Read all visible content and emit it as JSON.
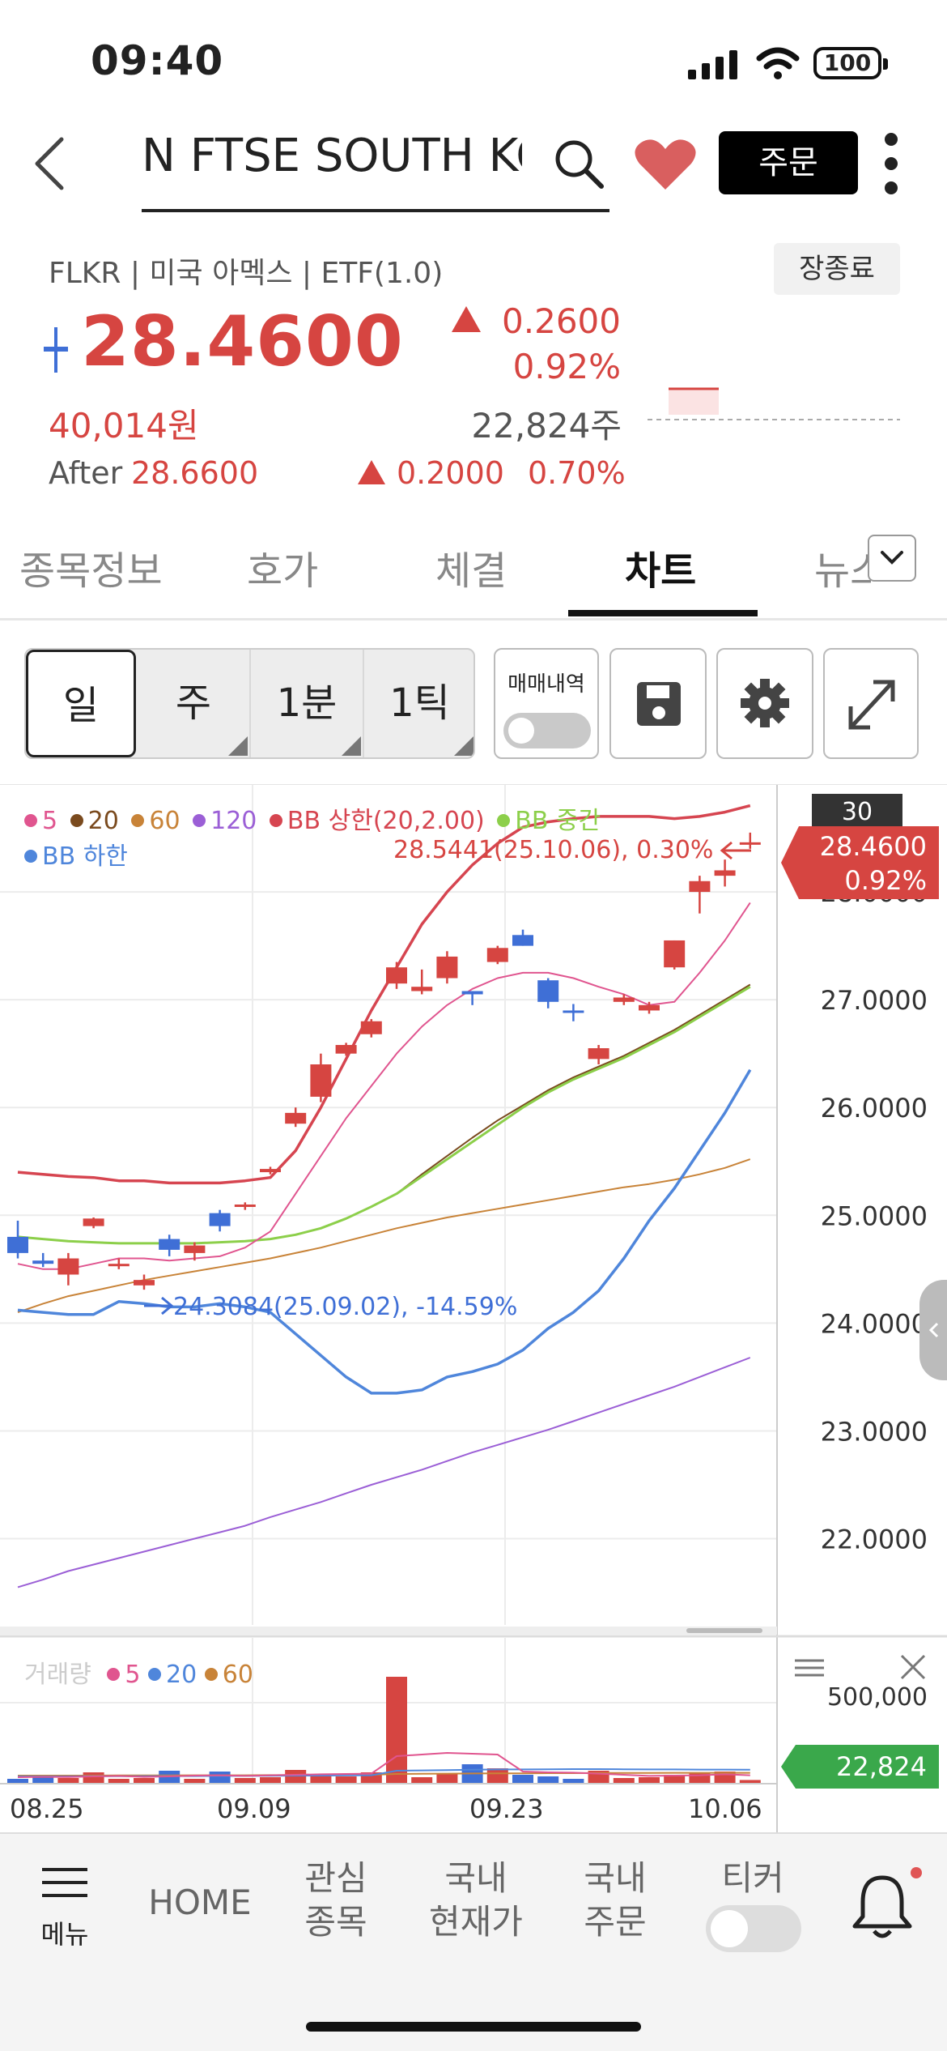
{
  "status_bar": {
    "time": "09:40",
    "battery": "100"
  },
  "header": {
    "title": "N FTSE SOUTH KOREA",
    "order_label": "주문"
  },
  "stock": {
    "sub_info": "FLKR | 미국 아멕스 | ETF(1.0)",
    "close_badge": "장종료",
    "price": "28.4600",
    "change": "0.2600",
    "change_pct": "0.92%",
    "price_krw": "40,014원",
    "volume": "22,824주",
    "after_label": "After",
    "after_price": "28.6600",
    "after_change": "0.2000",
    "after_change_pct": "0.70%"
  },
  "tabs": [
    "종목정보",
    "호가",
    "체결",
    "차트",
    "뉴스"
  ],
  "toolbar": {
    "periods": [
      "일",
      "주",
      "1분",
      "1틱"
    ],
    "trade_history_label": "매매내역"
  },
  "legend": {
    "ma5": "5",
    "ma20": "20",
    "ma60": "60",
    "ma120": "120",
    "bb_upper": "BB 상한(20,2.00)",
    "bb_mid": "BB 중간",
    "bb_lower": "BB 하한"
  },
  "colors": {
    "up": "#d64541",
    "down": "#3f6fd6",
    "ma5": "#e0558f",
    "ma20": "#7a4a1e",
    "ma60": "#c88338",
    "ma120": "#9b5fd6",
    "bb_upper": "#d64550",
    "bb_mid": "#8ccf4a",
    "bb_lower": "#4f86db",
    "volume_tag": "#3aa84b"
  },
  "annotations": {
    "max": "28.5441(25.10.06), 0.30%",
    "min": "24.3084(25.09.02), -14.59%",
    "period_badge": "30"
  },
  "price_tag": {
    "value": "28.4600",
    "pct": "0.92%"
  },
  "chart_data": {
    "type": "candlestick",
    "y_ticks": [
      "28.0000",
      "27.0000",
      "26.0000",
      "25.0000",
      "24.0000",
      "23.0000",
      "22.0000"
    ],
    "ylim": [
      21.2,
      29.0
    ],
    "x_labels": [
      "08.25",
      "09.09",
      "09.23",
      "10.06"
    ],
    "candles": [
      {
        "o": 24.8,
        "h": 24.95,
        "l": 24.6,
        "c": 24.65
      },
      {
        "o": 24.58,
        "h": 24.65,
        "l": 24.52,
        "c": 24.55
      },
      {
        "o": 24.45,
        "h": 24.65,
        "l": 24.35,
        "c": 24.6
      },
      {
        "o": 24.9,
        "h": 24.98,
        "l": 24.88,
        "c": 24.97
      },
      {
        "o": 24.55,
        "h": 24.6,
        "l": 24.5,
        "c": 24.55
      },
      {
        "o": 24.35,
        "h": 24.45,
        "l": 24.31,
        "c": 24.4
      },
      {
        "o": 24.78,
        "h": 24.82,
        "l": 24.62,
        "c": 24.68
      },
      {
        "o": 24.65,
        "h": 24.75,
        "l": 24.58,
        "c": 24.72
      },
      {
        "o": 25.02,
        "h": 25.05,
        "l": 24.85,
        "c": 24.9
      },
      {
        "o": 25.08,
        "h": 25.12,
        "l": 25.05,
        "c": 25.1
      },
      {
        "o": 25.4,
        "h": 25.45,
        "l": 25.38,
        "c": 25.43
      },
      {
        "o": 25.85,
        "h": 26.0,
        "l": 25.82,
        "c": 25.95
      },
      {
        "o": 26.1,
        "h": 26.5,
        "l": 26.05,
        "c": 26.4
      },
      {
        "o": 26.5,
        "h": 26.6,
        "l": 26.48,
        "c": 26.58
      },
      {
        "o": 26.68,
        "h": 26.82,
        "l": 26.65,
        "c": 26.8
      },
      {
        "o": 27.15,
        "h": 27.35,
        "l": 27.1,
        "c": 27.3
      },
      {
        "o": 27.08,
        "h": 27.28,
        "l": 27.05,
        "c": 27.12
      },
      {
        "o": 27.2,
        "h": 27.45,
        "l": 27.15,
        "c": 27.4
      },
      {
        "o": 27.08,
        "h": 27.08,
        "l": 26.95,
        "c": 27.05
      },
      {
        "o": 27.35,
        "h": 27.5,
        "l": 27.33,
        "c": 27.48
      },
      {
        "o": 27.6,
        "h": 27.65,
        "l": 27.5,
        "c": 27.5
      },
      {
        "o": 27.18,
        "h": 27.2,
        "l": 26.92,
        "c": 26.98
      },
      {
        "o": 26.9,
        "h": 26.96,
        "l": 26.8,
        "c": 26.88
      },
      {
        "o": 26.45,
        "h": 26.58,
        "l": 26.4,
        "c": 26.55
      },
      {
        "o": 26.98,
        "h": 27.05,
        "l": 26.95,
        "c": 27.02
      },
      {
        "o": 26.9,
        "h": 26.98,
        "l": 26.87,
        "c": 26.95
      },
      {
        "o": 27.3,
        "h": 27.55,
        "l": 27.28,
        "c": 27.55
      },
      {
        "o": 28.0,
        "h": 28.15,
        "l": 27.8,
        "c": 28.1
      },
      {
        "o": 28.15,
        "h": 28.3,
        "l": 28.05,
        "c": 28.2
      },
      {
        "o": 28.45,
        "h": 28.55,
        "l": 28.4,
        "c": 28.46
      }
    ],
    "bb_upper": [
      25.4,
      25.38,
      25.36,
      25.35,
      25.32,
      25.32,
      25.3,
      25.3,
      25.3,
      25.32,
      25.35,
      25.6,
      26.0,
      26.45,
      26.9,
      27.3,
      27.7,
      28.0,
      28.25,
      28.45,
      28.6,
      28.65,
      28.68,
      28.7,
      28.7,
      28.7,
      28.68,
      28.7,
      28.74,
      28.8
    ],
    "bb_mid": [
      24.8,
      24.78,
      24.76,
      24.75,
      24.74,
      24.74,
      24.74,
      24.74,
      24.75,
      24.76,
      24.78,
      24.82,
      24.88,
      24.97,
      25.08,
      25.2,
      25.36,
      25.52,
      25.68,
      25.84,
      26.0,
      26.14,
      26.26,
      26.36,
      26.46,
      26.58,
      26.7,
      26.84,
      26.98,
      27.12
    ],
    "bb_lower": [
      24.12,
      24.1,
      24.08,
      24.08,
      24.2,
      24.18,
      24.15,
      24.15,
      24.18,
      24.15,
      24.1,
      23.9,
      23.7,
      23.5,
      23.35,
      23.35,
      23.38,
      23.5,
      23.55,
      23.62,
      23.75,
      23.95,
      24.1,
      24.3,
      24.6,
      24.95,
      25.25,
      25.6,
      25.95,
      26.35
    ],
    "ma5": [
      24.55,
      24.5,
      24.5,
      24.55,
      24.6,
      24.6,
      24.58,
      24.6,
      24.62,
      24.7,
      24.85,
      25.2,
      25.55,
      25.9,
      26.2,
      26.5,
      26.75,
      26.95,
      27.1,
      27.2,
      27.25,
      27.25,
      27.2,
      27.12,
      27.05,
      26.95,
      26.98,
      27.25,
      27.55,
      27.9
    ],
    "ma20": [
      24.8,
      24.78,
      24.76,
      24.75,
      24.74,
      24.74,
      24.74,
      24.74,
      24.75,
      24.76,
      24.78,
      24.82,
      24.88,
      24.97,
      25.08,
      25.2,
      25.38,
      25.55,
      25.72,
      25.88,
      26.02,
      26.16,
      26.28,
      26.38,
      26.48,
      26.6,
      26.72,
      26.86,
      27.0,
      27.14
    ],
    "ma60": [
      24.1,
      24.18,
      24.25,
      24.3,
      24.35,
      24.4,
      24.44,
      24.48,
      24.52,
      24.56,
      24.6,
      24.65,
      24.7,
      24.76,
      24.82,
      24.88,
      24.93,
      24.98,
      25.02,
      25.06,
      25.1,
      25.14,
      25.18,
      25.22,
      25.26,
      25.29,
      25.33,
      25.38,
      25.44,
      25.52
    ],
    "ma120": [
      21.55,
      21.62,
      21.7,
      21.76,
      21.82,
      21.88,
      21.94,
      22.0,
      22.06,
      22.12,
      22.2,
      22.27,
      22.34,
      22.42,
      22.5,
      22.57,
      22.64,
      22.72,
      22.8,
      22.87,
      22.94,
      23.01,
      23.09,
      23.17,
      23.25,
      23.33,
      23.41,
      23.5,
      23.59,
      23.68
    ],
    "volume": {
      "axis_label": "500,000",
      "tag": "22,824",
      "ylim": [
        0,
        700000
      ],
      "values": [
        30000,
        40000,
        35000,
        70000,
        30000,
        35000,
        80000,
        30000,
        75000,
        35000,
        40000,
        85000,
        55000,
        45000,
        70000,
        660000,
        40000,
        60000,
        120000,
        95000,
        55000,
        45000,
        30000,
        80000,
        35000,
        40000,
        55000,
        65000,
        75000,
        22824
      ],
      "ma5": [
        40000,
        42000,
        41000,
        45000,
        48000,
        42000,
        45000,
        50000,
        52000,
        48000,
        52000,
        55000,
        58000,
        60000,
        62000,
        170000,
        180000,
        190000,
        185000,
        180000,
        75000,
        70000,
        68000,
        62000,
        55000,
        48000,
        50000,
        52000,
        58000,
        52000
      ],
      "ma20": [
        45000,
        45000,
        45000,
        46000,
        46000,
        46000,
        47000,
        47000,
        48000,
        48000,
        49000,
        50000,
        50000,
        51000,
        52000,
        80000,
        82000,
        84000,
        86000,
        88000,
        88000,
        89000,
        90000,
        90000,
        89000,
        88000,
        88000,
        87000,
        87000,
        86000
      ],
      "ma60": [
        50000,
        50000,
        50000,
        50000,
        51000,
        51000,
        51000,
        52000,
        52000,
        52000,
        53000,
        53000,
        54000,
        54000,
        55000,
        60000,
        61000,
        62000,
        63000,
        64000,
        64000,
        65000,
        65000,
        66000,
        66000,
        66000,
        67000,
        67000,
        67000,
        67000
      ]
    },
    "volume_legend": {
      "label": "거래량",
      "ma5": "5",
      "ma20": "20",
      "ma60": "60"
    }
  },
  "bottom_nav": {
    "menu": "메뉴",
    "home": "HOME",
    "watch_1": "관심",
    "watch_2": "종목",
    "dom_price_1": "국내",
    "dom_price_2": "현재가",
    "dom_order_1": "국내",
    "dom_order_2": "주문",
    "ticker": "티커"
  }
}
